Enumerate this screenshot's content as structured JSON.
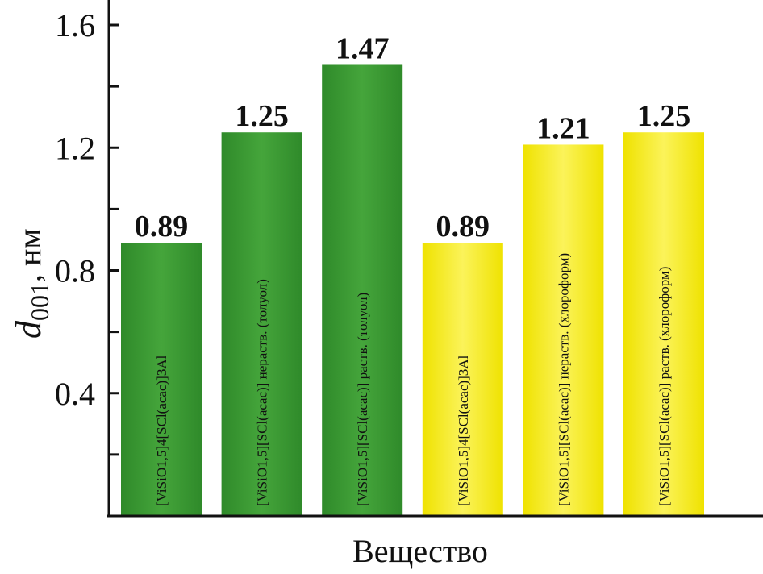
{
  "chart_data": {
    "type": "bar",
    "xlabel": "Вещество",
    "ylabel": {
      "symbol": "d",
      "subscript": "001",
      "unit": ", нм"
    },
    "ylim": [
      0,
      1.6
    ],
    "yticks": [
      "0.4",
      "0.8",
      "1.2",
      "1.6"
    ],
    "grid": false,
    "categories": [
      "[ViSiO1,5]4[SCl(acac)]3Al",
      "[ViSiO1,5][SCl(acac)] нераств. (толуол)",
      "[ViSiO1,5][SCl(acac)] раств. (толуол)",
      "[ViSiO1,5]4[SCl(acac)]3Al",
      "[ViSiO1,5][SCl(acac)] нераств. (хлороформ)",
      "[ViSiO1,5][SCl(acac)] раств. (хлороформ)"
    ],
    "values": [
      0.89,
      1.25,
      1.47,
      0.89,
      1.21,
      1.25
    ],
    "value_labels": [
      "0.89",
      "1.25",
      "1.47",
      "0.89",
      "1.21",
      "1.25"
    ],
    "colors": [
      "#3c9a34",
      "#3c9a34",
      "#3c9a34",
      "#f5ec1c",
      "#f5ec1c",
      "#f5ec1c"
    ]
  }
}
